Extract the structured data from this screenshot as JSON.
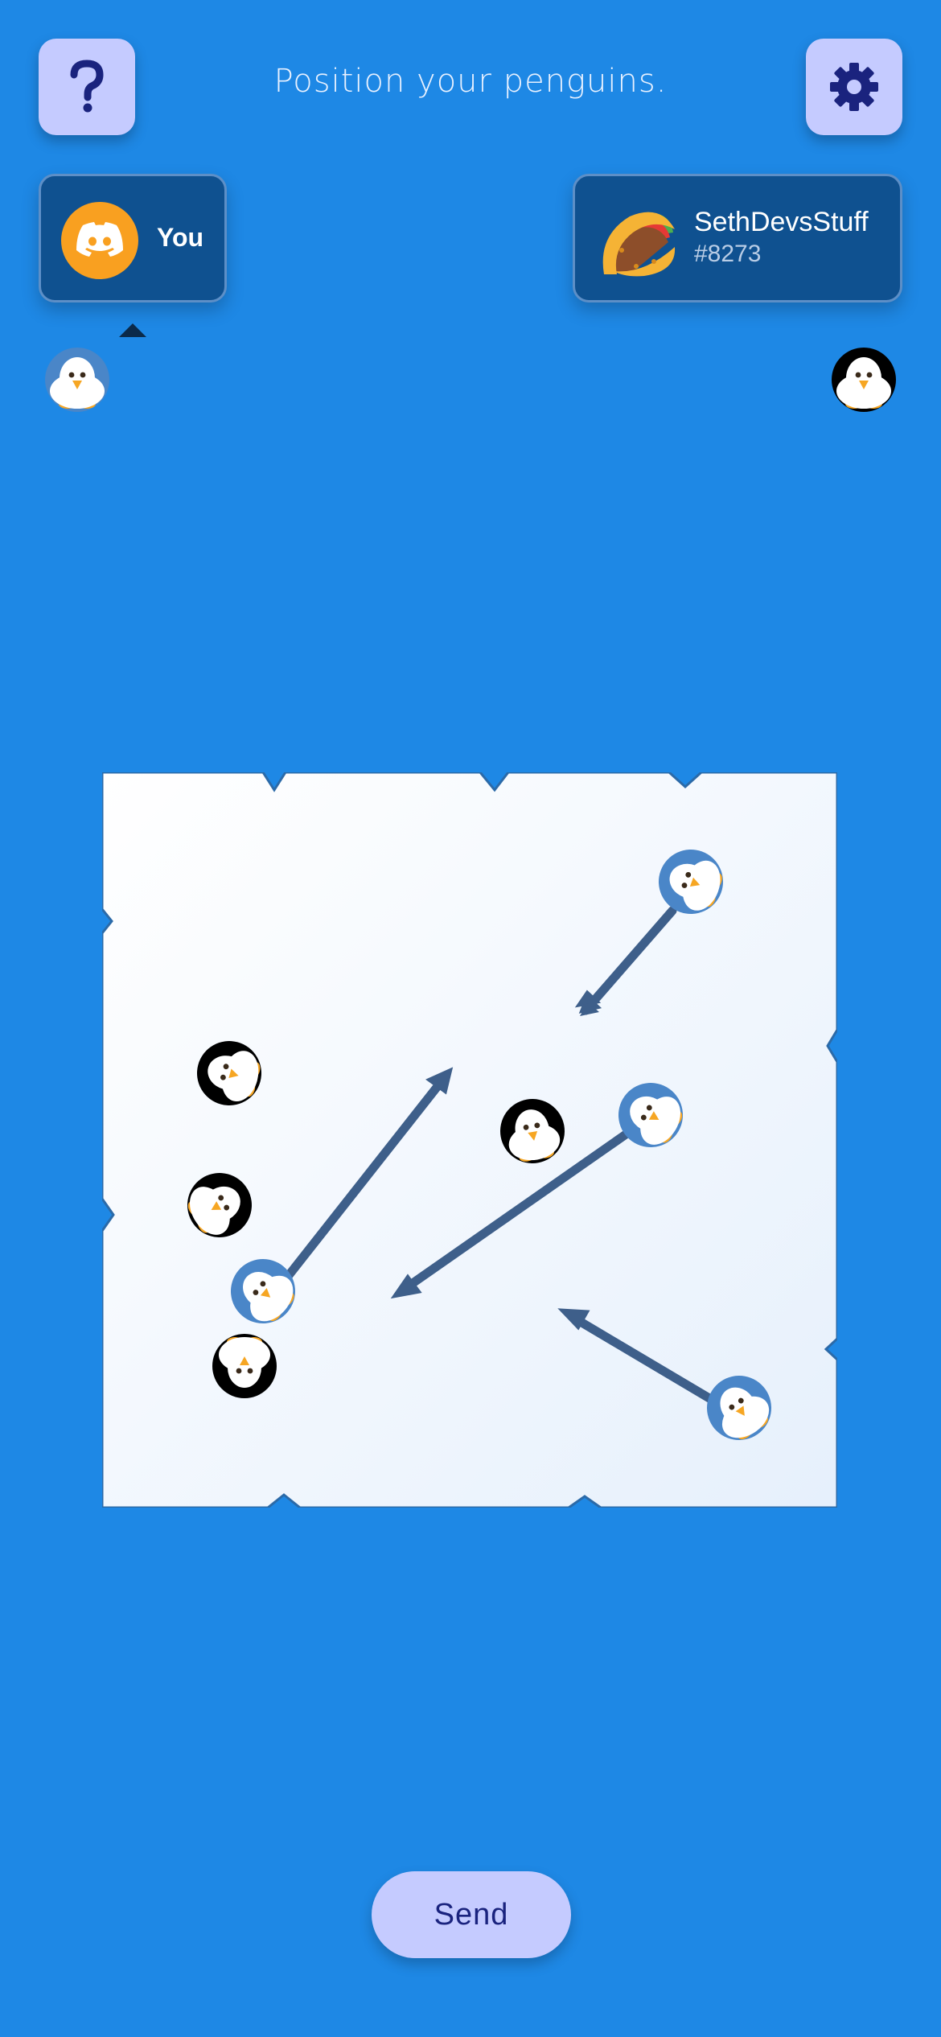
{
  "header": {
    "help_icon": "question-mark-icon",
    "title": "Position your penguins.",
    "settings_icon": "gear-icon"
  },
  "players": {
    "you": {
      "label": "You",
      "avatar_icon": "discord-logo-icon",
      "avatar_color": "#f9a020",
      "team_color": "#4a86c8",
      "active_turn": true
    },
    "opponent": {
      "name": "SethDevsStuff",
      "tag": "#8273",
      "avatar_icon": "taco-icon",
      "team_color": "#000000"
    }
  },
  "board": {
    "background": "#f4f8ff",
    "arrow_color": "#3e5f8a",
    "your_penguins": 4,
    "opponent_penguins": 4
  },
  "actions": {
    "send_label": "Send"
  },
  "colors": {
    "background": "#1e88e5",
    "button": "#c5cbff",
    "card": "#0f5190"
  }
}
